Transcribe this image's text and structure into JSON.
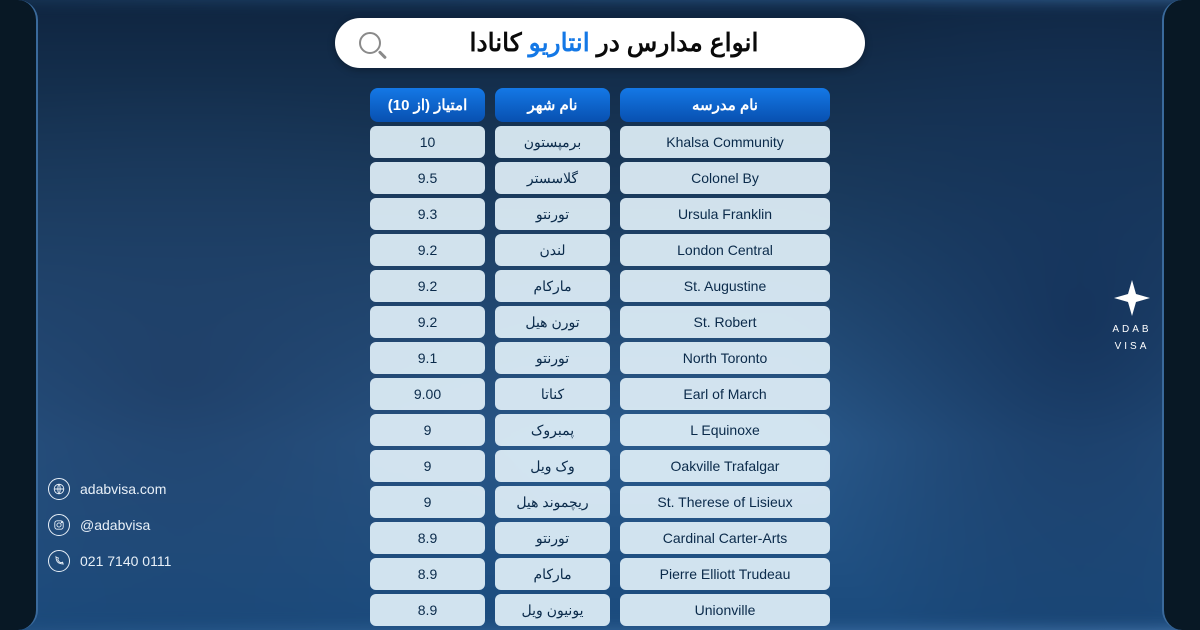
{
  "search": {
    "prefix": "انواع مدارس در ",
    "accent": "انتاریو",
    "suffix": " کانادا"
  },
  "headers": {
    "school": "نام مدرسه",
    "city": "نام شهر",
    "score": "امتیاز (از 10)"
  },
  "rows": [
    {
      "school": "Khalsa Community",
      "city": "برمپستون",
      "score": "10"
    },
    {
      "school": "Colonel By",
      "city": "گلاسستر",
      "score": "9.5"
    },
    {
      "school": "Ursula Franklin",
      "city": "تورنتو",
      "score": "9.3"
    },
    {
      "school": "London Central",
      "city": "لندن",
      "score": "9.2"
    },
    {
      "school": "St. Augustine",
      "city": "مارکام",
      "score": "9.2"
    },
    {
      "school": "St. Robert",
      "city": "تورن هیل",
      "score": "9.2"
    },
    {
      "school": "North Toronto",
      "city": "تورنتو",
      "score": "9.1"
    },
    {
      "school": "Earl of March",
      "city": "کناتا",
      "score": "9.00"
    },
    {
      "school": "L Equinoxe",
      "city": "پمبروک",
      "score": "9"
    },
    {
      "school": "Oakville Trafalgar",
      "city": "وک ویل",
      "score": "9"
    },
    {
      "school": "St. Therese of Lisieux",
      "city": "ریچموند هیل",
      "score": "9"
    },
    {
      "school": "Cardinal Carter-Arts",
      "city": "تورنتو",
      "score": "8.9"
    },
    {
      "school": "Pierre Elliott Trudeau",
      "city": "مارکام",
      "score": "8.9"
    },
    {
      "school": "Unionville",
      "city": "یونیون ویل",
      "score": "8.9"
    }
  ],
  "contact": {
    "web": "adabvisa.com",
    "social": "@adabvisa",
    "phone": "021 7140 0111"
  },
  "brand": {
    "line1": "ADAB",
    "line2": "VISA"
  },
  "colors": {
    "accent": "#1478e6",
    "header_grad_top": "#1478e6",
    "header_grad_bottom": "#0850b0",
    "cell_bg": "rgba(225,240,248,0.92)",
    "frame": "#081825"
  }
}
